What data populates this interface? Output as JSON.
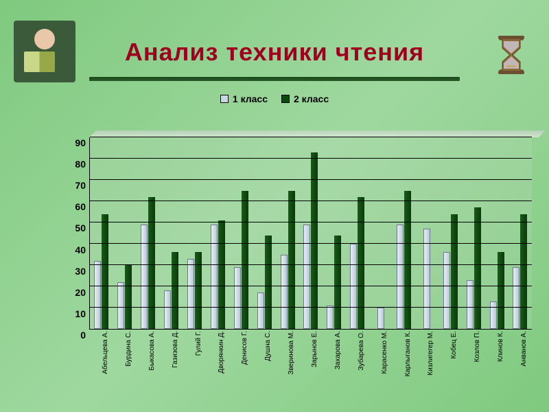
{
  "title": {
    "text": "Анализ техники чтения",
    "color": "#a00020",
    "fontsize": 36
  },
  "legend": {
    "series1": {
      "label": "1 класс",
      "color": "#c8d8e8"
    },
    "series2": {
      "label": "2 класс",
      "color": "#0a4a0a"
    }
  },
  "chart": {
    "type": "bar",
    "ylim": [
      0,
      90
    ],
    "ytick_step": 10,
    "background_color": "rgba(200,220,200,0.2)",
    "grid_color": "#000000",
    "label_fontsize": 10,
    "tick_fontsize": 14,
    "categories": [
      "Абельцева А.",
      "Бурдина С.",
      "Быкасова А.",
      "Газизова Д.",
      "Гулий Г.",
      "Дворянкин Д.",
      "Денисов Г.",
      "Душна С.",
      "Зверинова М.",
      "Зарынов Е.",
      "Захарова А.",
      "Зубарева О.",
      "Карасенко М.",
      "Карлыганов К.",
      "Кизлигегер М.",
      "Кобец Е.",
      "Козлов П.",
      "Клинов К.",
      "Анванов А."
    ],
    "series1_values": [
      32,
      22,
      49,
      18,
      33,
      49,
      29,
      17,
      35,
      49,
      11,
      40,
      10,
      49,
      47,
      36,
      23,
      13,
      29
    ],
    "series2_values": [
      54,
      30,
      62,
      36,
      36,
      51,
      65,
      44,
      65,
      83,
      44,
      62,
      0,
      65,
      0,
      54,
      57,
      36,
      54
    ],
    "series1_color": "#c8d8e8",
    "series2_color": "#0a4a0a"
  }
}
